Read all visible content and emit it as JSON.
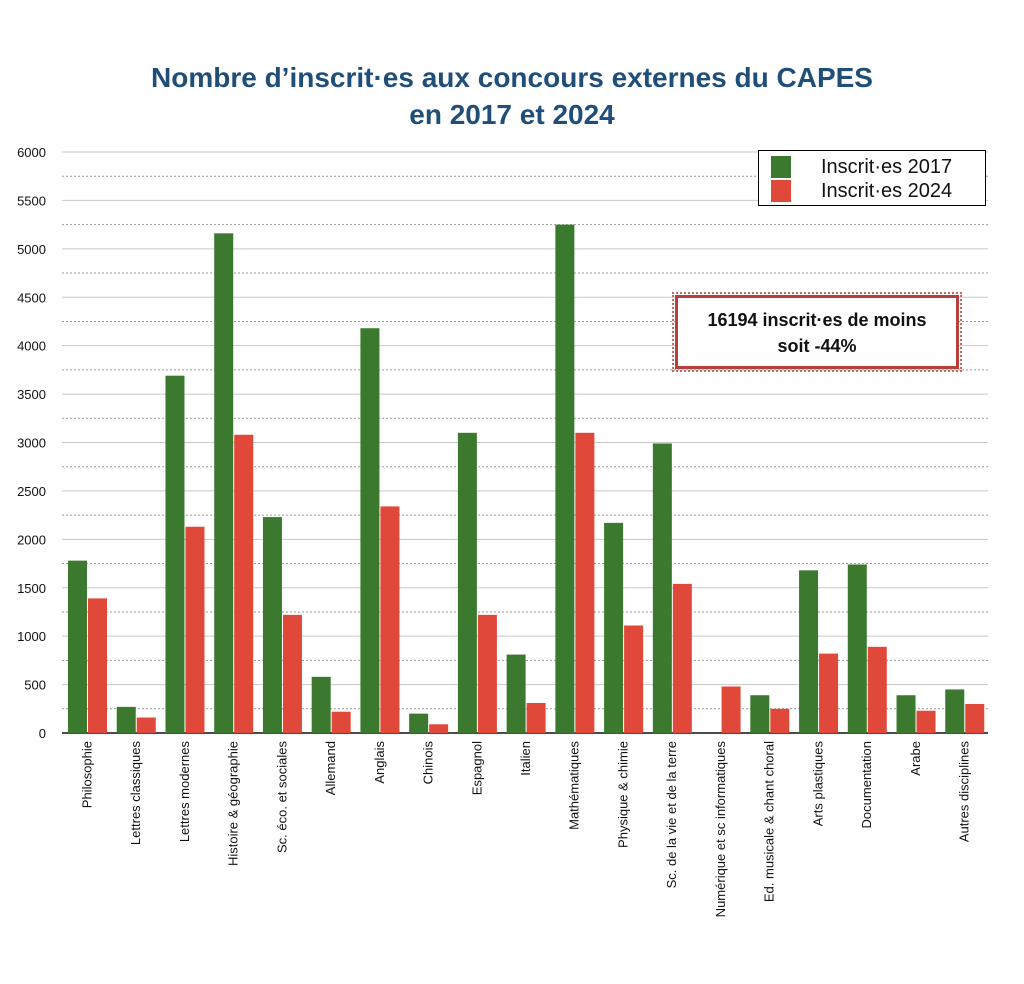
{
  "chart_data": {
    "type": "bar",
    "title_line1": "Nombre d’inscrit·es aux concours externes du CAPES",
    "title_line2": "en 2017 et 2024",
    "categories": [
      "Philosophie",
      "Lettres classiques",
      "Lettres modernes",
      "Histoire & géographie",
      "Sc. éco. et sociales",
      "Allemand",
      "Anglais",
      "Chinois",
      "Espagnol",
      "Italien",
      "Mathématiques",
      "Physique & chimie",
      "Sc. de la vie et de la terre",
      "Numérique et sc informatiques",
      "Ed. musicale & chant choral",
      "Arts plastiques",
      "Documentation",
      "Arabe",
      "Autres disciplines"
    ],
    "series": [
      {
        "name": "Inscrit·es 2017",
        "color": "#3b7a2e",
        "values": [
          1780,
          270,
          3690,
          5160,
          2230,
          580,
          4180,
          200,
          3100,
          810,
          5250,
          2170,
          2990,
          0,
          390,
          1680,
          1740,
          390,
          450
        ]
      },
      {
        "name": "Inscrit·es 2024",
        "color": "#e0483a",
        "values": [
          1390,
          160,
          2130,
          3080,
          1220,
          220,
          2340,
          90,
          1220,
          310,
          3100,
          1110,
          1540,
          480,
          250,
          820,
          890,
          230,
          300
        ]
      }
    ],
    "ylim": [
      0,
      6000
    ],
    "yticks": [
      0,
      500,
      1000,
      1500,
      2000,
      2500,
      3000,
      3500,
      4000,
      4500,
      5000,
      5500,
      6000
    ],
    "grid": true,
    "legend_position": "top-right",
    "annotation": {
      "line1": "16194 inscrit·es de moins",
      "line2": "soit -44%"
    }
  }
}
